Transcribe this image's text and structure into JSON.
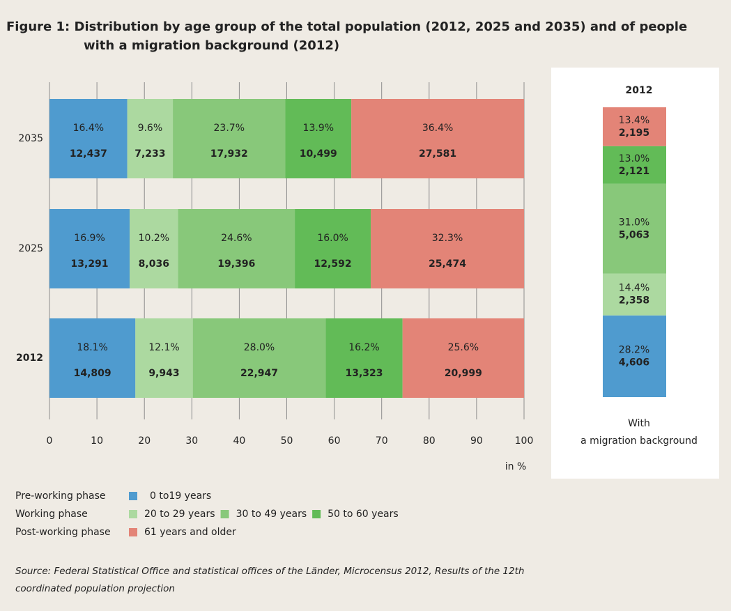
{
  "title": [
    "Figure 1: Distribution by age group of the total population (2012, 2025 and 2035) and of people",
    "with a migration background (2012)"
  ],
  "chart_data": [
    {
      "type": "stacked-barh",
      "categories": [
        "2035",
        "2025",
        "2012"
      ],
      "series": [
        {
          "name": "0 to19 years",
          "color": "#4f9bcf",
          "values": [
            16.4,
            16.9,
            18.1
          ],
          "value_labels": [
            "16.4%",
            "16.9%",
            "18.1%"
          ],
          "count_labels": [
            "12,437",
            "13,291",
            "14,809"
          ]
        },
        {
          "name": "20 to 29 years",
          "color": "#acd9a0",
          "values": [
            9.6,
            10.2,
            12.1
          ],
          "value_labels": [
            "9.6%",
            "10.2%",
            "12.1%"
          ],
          "count_labels": [
            "7,233",
            "8,036",
            "9,943"
          ]
        },
        {
          "name": "30 to 49 years",
          "color": "#88c87a",
          "values": [
            23.7,
            24.6,
            28.0
          ],
          "value_labels": [
            "23.7%",
            "24.6%",
            "28.0%"
          ],
          "count_labels": [
            "17,932",
            "19,396",
            "22,947"
          ]
        },
        {
          "name": "50 to 60 years",
          "color": "#62bb57",
          "values": [
            13.9,
            16.0,
            16.2
          ],
          "value_labels": [
            "13.9%",
            "16.0%",
            "16.2%"
          ],
          "count_labels": [
            "10,499",
            "12,592",
            "13,323"
          ]
        },
        {
          "name": "61 years and older",
          "color": "#e38477",
          "values": [
            36.4,
            32.3,
            25.6
          ],
          "value_labels": [
            "36.4%",
            "32.3%",
            "25.6%"
          ],
          "count_labels": [
            "27,581",
            "25,474",
            "20,999"
          ]
        }
      ],
      "xlim": [
        0,
        100
      ],
      "xticks": [
        0,
        10,
        20,
        30,
        40,
        50,
        60,
        70,
        80,
        90,
        100
      ],
      "x_label": "in %",
      "grid": true
    },
    {
      "type": "stacked-column",
      "title": "2012",
      "x_label": [
        "With",
        "a migration background"
      ],
      "values": [
        28.2,
        14.4,
        31.0,
        13.0,
        13.4
      ],
      "value_labels": [
        "28.2%",
        "14.4%",
        "31.0%",
        "13.0%",
        "13.4%"
      ],
      "count_labels": [
        "4,606",
        "2,358",
        "5,063",
        "2,121",
        "2,195"
      ]
    }
  ],
  "legend": [
    "Pre-working phase",
    "Working phase",
    "Post-working phase"
  ],
  "source": [
    "Source: Federal Statistical Office and statistical offices of the Länder, Microcensus 2012, Results of the 12th",
    "coordinated population projection"
  ]
}
